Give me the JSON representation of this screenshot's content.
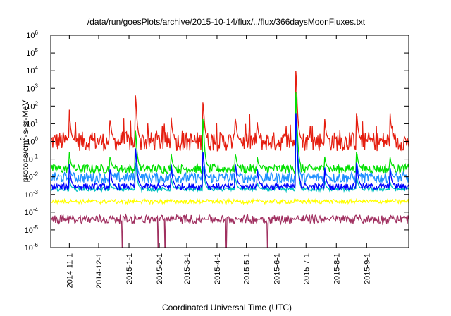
{
  "chart_data": {
    "type": "line",
    "title": "/data/run/goesPlots/archive/2015-10-14/flux/../flux/366daysMoonFluxes.txt",
    "xlabel": "Coordinated Universal Time (UTC)",
    "ylabel": {
      "base": "protons/cm",
      "sup": "2",
      "rest": "-s-sr-MeV"
    },
    "y_scale": "log",
    "ylim": [
      1e-06,
      1000000.0
    ],
    "y_ticks": [
      {
        "base": "10",
        "exp": "-6"
      },
      {
        "base": "10",
        "exp": "-5"
      },
      {
        "base": "10",
        "exp": "-4"
      },
      {
        "base": "10",
        "exp": "-3"
      },
      {
        "base": "10",
        "exp": "-2"
      },
      {
        "base": "10",
        "exp": "-1"
      },
      {
        "base": "10",
        "exp": "0"
      },
      {
        "base": "10",
        "exp": "1"
      },
      {
        "base": "10",
        "exp": "2"
      },
      {
        "base": "10",
        "exp": "3"
      },
      {
        "base": "10",
        "exp": "4"
      },
      {
        "base": "10",
        "exp": "5"
      },
      {
        "base": "10",
        "exp": "6"
      }
    ],
    "xlim": [
      "2014-10-13",
      "2015-10-14"
    ],
    "x_ticks": [
      "2014-11-1",
      "2014-12-1",
      "2015-1-1",
      "2015-2-1",
      "2015-3-1",
      "2015-4-1",
      "2015-5-1",
      "2015-6-1",
      "2015-7-1",
      "2015-8-1",
      "2015-9-1"
    ],
    "x_tick_dates": [
      "2014-11-01",
      "2014-12-01",
      "2015-01-01",
      "2015-02-01",
      "2015-03-01",
      "2015-04-01",
      "2015-05-01",
      "2015-06-01",
      "2015-07-01",
      "2015-08-01",
      "2015-09-01"
    ],
    "grid": false,
    "series": [
      {
        "color": "#e51e10",
        "base_log": 0.0,
        "noise": 0.55
      },
      {
        "color": "#00e000",
        "base_log": -1.55,
        "noise": 0.25
      },
      {
        "color": "#1e90ff",
        "base_log": -2.05,
        "noise": 0.3
      },
      {
        "color": "#00c0c0",
        "base_log": -2.7,
        "noise": 0.12
      },
      {
        "color": "#0000ff",
        "base_log": -2.55,
        "noise": 0.18
      },
      {
        "color": "#ffff00",
        "base_log": -3.4,
        "noise": 0.12
      },
      {
        "color": "#a03060",
        "base_log": -4.4,
        "noise": 0.25
      }
    ],
    "events": [
      {
        "date": "2014-11-01",
        "peaks_log": [
          1.8,
          -0.6,
          -1.3
        ]
      },
      {
        "date": "2014-12-13",
        "peaks_log": [
          1.2,
          -0.9,
          -1.6
        ]
      },
      {
        "date": "2015-01-08",
        "peaks_log": [
          2.6,
          0.6,
          -0.4
        ]
      },
      {
        "date": "2015-02-13",
        "peaks_log": [
          1.5,
          -0.6,
          -1.2
        ]
      },
      {
        "date": "2015-03-18",
        "peaks_log": [
          2.2,
          1.3,
          -0.6
        ]
      },
      {
        "date": "2015-04-20",
        "peaks_log": [
          1.3,
          -0.7,
          -1.3
        ]
      },
      {
        "date": "2015-05-12",
        "peaks_log": [
          1.2,
          -0.8,
          -1.5
        ]
      },
      {
        "date": "2015-06-21",
        "peaks_log": [
          4.0,
          2.8,
          1.6
        ]
      },
      {
        "date": "2015-07-20",
        "peaks_log": [
          1.4,
          -0.8,
          -1.4
        ]
      },
      {
        "date": "2015-08-22",
        "peaks_log": [
          1.6,
          -0.6,
          -1.2
        ]
      },
      {
        "date": "2015-09-25",
        "peaks_log": [
          1.6,
          -0.9,
          -1.5
        ]
      }
    ]
  }
}
